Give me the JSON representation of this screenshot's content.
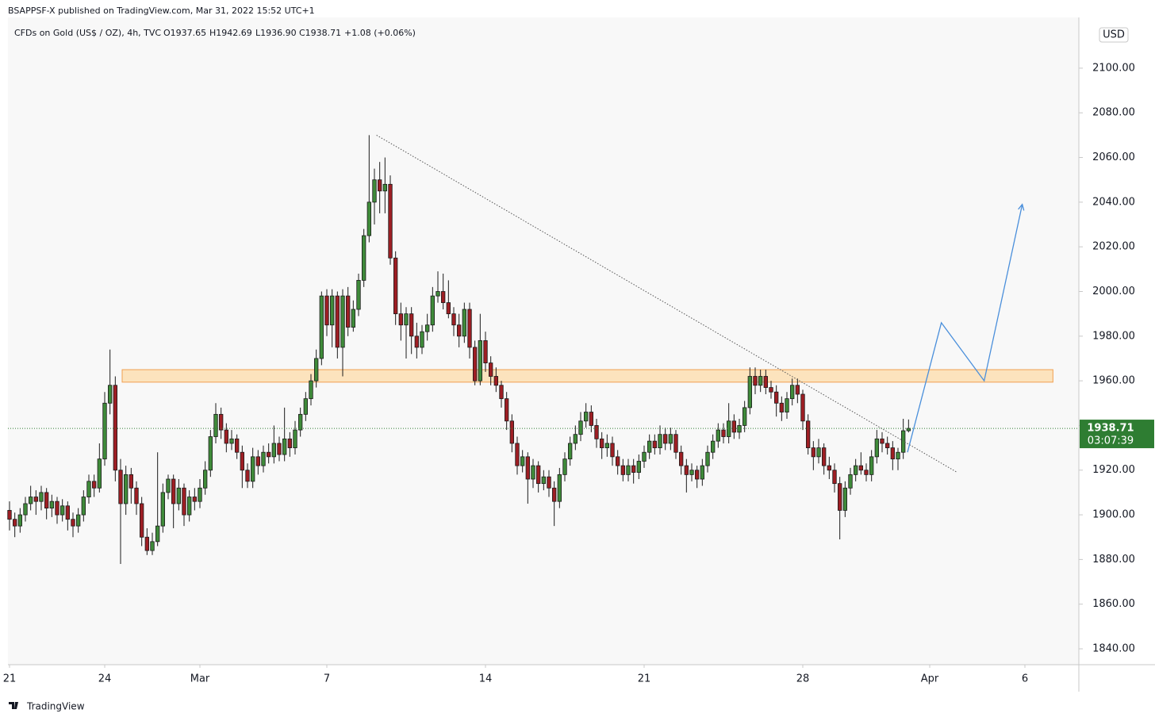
{
  "header": {
    "publisher": "BSAPPSF-X published on TradingView.com, Mar 31, 2022 15:52 UTC+1"
  },
  "footer": {
    "brand": "TradingView"
  },
  "chart_data": {
    "type": "candlestick",
    "symbol": "CFDs on Gold (US$ / OZ), 4h, TVC",
    "legend": {
      "open": "O1937.65",
      "high": "H1942.69",
      "low": "L1936.90",
      "close": "C1938.71",
      "change": "+1.08 (+0.06%)"
    },
    "currency": "USD",
    "last_price": 1938.71,
    "countdown": "03:07:39",
    "up_color": "#3f8b3a",
    "down_color": "#9e1e24",
    "last_price_color": "#2e7d32",
    "xlim": [
      -0.3,
      202.2
    ],
    "xticks": [
      {
        "value": 0,
        "label": "21"
      },
      {
        "value": 18,
        "label": "24"
      },
      {
        "value": 36,
        "label": "Mar"
      },
      {
        "value": 60,
        "label": "7"
      },
      {
        "value": 90,
        "label": "14"
      },
      {
        "value": 120,
        "label": "21"
      },
      {
        "value": 150,
        "label": "28"
      },
      {
        "value": 174,
        "label": "Apr"
      },
      {
        "value": 192,
        "label": "6"
      }
    ],
    "ylim": [
      1832.9,
      2122.7
    ],
    "yticks": [
      {
        "value": 1840,
        "label": "1840.00"
      },
      {
        "value": 1860,
        "label": "1860.00"
      },
      {
        "value": 1880,
        "label": "1880.00"
      },
      {
        "value": 1900,
        "label": "1900.00"
      },
      {
        "value": 1920,
        "label": "1920.00"
      },
      {
        "value": 1940,
        "label": "1940.00"
      },
      {
        "value": 1960,
        "label": "1960.00"
      },
      {
        "value": 1980,
        "label": "1980.00"
      },
      {
        "value": 2000,
        "label": "2000.00"
      },
      {
        "value": 2020,
        "label": "2020.00"
      },
      {
        "value": 2040,
        "label": "2040.00"
      },
      {
        "value": 2060,
        "label": "2060.00"
      },
      {
        "value": 2080,
        "label": "2080.00"
      },
      {
        "value": 2100,
        "label": "2100.00"
      }
    ],
    "drawings": {
      "zone": {
        "x": [
          21.3,
          197.3
        ],
        "y": [
          1959.4,
          1965
        ]
      },
      "trendline": {
        "x": [
          69.4,
          179.2
        ],
        "y": [
          2070,
          1919
        ]
      },
      "projection": {
        "x": [
          169.8,
          176.2,
          184.3,
          191.5
        ],
        "y": [
          1928,
          1986,
          1960,
          2039
        ],
        "color": "#4a8fdb"
      }
    },
    "ohlc": [
      [
        1902,
        1906,
        1893,
        1898
      ],
      [
        1898,
        1901,
        1890,
        1895
      ],
      [
        1895,
        1903,
        1892,
        1900
      ],
      [
        1900,
        1908,
        1897,
        1905
      ],
      [
        1905,
        1913,
        1902,
        1908
      ],
      [
        1908,
        1911,
        1900,
        1906
      ],
      [
        1906,
        1913,
        1902,
        1910
      ],
      [
        1910,
        1912,
        1898,
        1903
      ],
      [
        1903,
        1909,
        1899,
        1906
      ],
      [
        1906,
        1908,
        1896,
        1900
      ],
      [
        1900,
        1907,
        1897,
        1904
      ],
      [
        1904,
        1906,
        1893,
        1898
      ],
      [
        1898,
        1901,
        1890,
        1895
      ],
      [
        1895,
        1903,
        1892,
        1900
      ],
      [
        1900,
        1911,
        1897,
        1908
      ],
      [
        1908,
        1918,
        1905,
        1915
      ],
      [
        1915,
        1918,
        1908,
        1912
      ],
      [
        1912,
        1932,
        1910,
        1925
      ],
      [
        1925,
        1955,
        1922,
        1950
      ],
      [
        1950,
        1974,
        1945,
        1958
      ],
      [
        1958,
        1962,
        1915,
        1920
      ],
      [
        1920,
        1925,
        1878,
        1905
      ],
      [
        1905,
        1922,
        1900,
        1918
      ],
      [
        1918,
        1921,
        1905,
        1912
      ],
      [
        1912,
        1915,
        1900,
        1905
      ],
      [
        1905,
        1908,
        1886,
        1890
      ],
      [
        1890,
        1894,
        1882,
        1884
      ],
      [
        1884,
        1892,
        1882,
        1888
      ],
      [
        1888,
        1928,
        1886,
        1895
      ],
      [
        1895,
        1914,
        1892,
        1910
      ],
      [
        1910,
        1918,
        1907,
        1916
      ],
      [
        1916,
        1918,
        1894,
        1905
      ],
      [
        1905,
        1916,
        1902,
        1912
      ],
      [
        1912,
        1914,
        1895,
        1900
      ],
      [
        1900,
        1911,
        1897,
        1908
      ],
      [
        1908,
        1912,
        1902,
        1906
      ],
      [
        1906,
        1916,
        1903,
        1912
      ],
      [
        1912,
        1924,
        1909,
        1920
      ],
      [
        1920,
        1938,
        1917,
        1935
      ],
      [
        1935,
        1950,
        1932,
        1945
      ],
      [
        1945,
        1948,
        1934,
        1938
      ],
      [
        1938,
        1941,
        1928,
        1932
      ],
      [
        1932,
        1938,
        1929,
        1934
      ],
      [
        1934,
        1936,
        1925,
        1928
      ],
      [
        1928,
        1931,
        1912,
        1920
      ],
      [
        1920,
        1923,
        1912,
        1915
      ],
      [
        1915,
        1930,
        1912,
        1926
      ],
      [
        1926,
        1929,
        1918,
        1922
      ],
      [
        1922,
        1931,
        1919,
        1928
      ],
      [
        1928,
        1932,
        1923,
        1926
      ],
      [
        1926,
        1940,
        1923,
        1932
      ],
      [
        1932,
        1935,
        1924,
        1927
      ],
      [
        1927,
        1948,
        1924,
        1934
      ],
      [
        1934,
        1937,
        1926,
        1930
      ],
      [
        1930,
        1942,
        1927,
        1938
      ],
      [
        1938,
        1948,
        1935,
        1945
      ],
      [
        1945,
        1955,
        1942,
        1952
      ],
      [
        1952,
        1963,
        1949,
        1960
      ],
      [
        1960,
        1974,
        1957,
        1970
      ],
      [
        1970,
        2000,
        1967,
        1998
      ],
      [
        1998,
        2001,
        1980,
        1985
      ],
      [
        1985,
        2001,
        1975,
        1998
      ],
      [
        1998,
        2000,
        1970,
        1975
      ],
      [
        1975,
        2001,
        1962,
        1998
      ],
      [
        1998,
        2002,
        1980,
        1984
      ],
      [
        1984,
        1996,
        1982,
        1992
      ],
      [
        1992,
        2008,
        1989,
        2005
      ],
      [
        2005,
        2028,
        2002,
        2025
      ],
      [
        2025,
        2070,
        2022,
        2040
      ],
      [
        2040,
        2055,
        2030,
        2050
      ],
      [
        2050,
        2058,
        2035,
        2045
      ],
      [
        2045,
        2060,
        2035,
        2048
      ],
      [
        2048,
        2052,
        2012,
        2015
      ],
      [
        2015,
        2018,
        1985,
        1990
      ],
      [
        1990,
        1995,
        1978,
        1985
      ],
      [
        1985,
        1993,
        1970,
        1990
      ],
      [
        1990,
        1993,
        1972,
        1980
      ],
      [
        1980,
        1986,
        1970,
        1975
      ],
      [
        1975,
        1985,
        1972,
        1982
      ],
      [
        1982,
        1990,
        1978,
        1985
      ],
      [
        1985,
        2002,
        1982,
        1998
      ],
      [
        1998,
        2009,
        1995,
        2000
      ],
      [
        2000,
        2008,
        1992,
        1995
      ],
      [
        1995,
        2005,
        1988,
        1990
      ],
      [
        1990,
        1993,
        1980,
        1985
      ],
      [
        1985,
        1990,
        1975,
        1980
      ],
      [
        1980,
        1995,
        1977,
        1992
      ],
      [
        1992,
        1995,
        1970,
        1975
      ],
      [
        1975,
        1978,
        1958,
        1960
      ],
      [
        1960,
        1990,
        1958,
        1978
      ],
      [
        1978,
        1982,
        1964,
        1968
      ],
      [
        1968,
        1971,
        1958,
        1962
      ],
      [
        1962,
        1966,
        1955,
        1958
      ],
      [
        1958,
        1960,
        1948,
        1952
      ],
      [
        1952,
        1955,
        1938,
        1942
      ],
      [
        1942,
        1945,
        1928,
        1932
      ],
      [
        1932,
        1935,
        1918,
        1922
      ],
      [
        1922,
        1929,
        1919,
        1926
      ],
      [
        1926,
        1928,
        1905,
        1916
      ],
      [
        1916,
        1925,
        1912,
        1922
      ],
      [
        1922,
        1924,
        1910,
        1914
      ],
      [
        1914,
        1920,
        1911,
        1917
      ],
      [
        1917,
        1920,
        1908,
        1912
      ],
      [
        1912,
        1915,
        1895,
        1906
      ],
      [
        1906,
        1921,
        1903,
        1918
      ],
      [
        1918,
        1928,
        1915,
        1925
      ],
      [
        1925,
        1935,
        1922,
        1932
      ],
      [
        1932,
        1940,
        1929,
        1936
      ],
      [
        1936,
        1946,
        1933,
        1942
      ],
      [
        1942,
        1950,
        1939,
        1946
      ],
      [
        1946,
        1949,
        1937,
        1940
      ],
      [
        1940,
        1943,
        1930,
        1934
      ],
      [
        1934,
        1937,
        1925,
        1930
      ],
      [
        1930,
        1936,
        1926,
        1932
      ],
      [
        1932,
        1935,
        1922,
        1926
      ],
      [
        1926,
        1929,
        1918,
        1922
      ],
      [
        1922,
        1925,
        1915,
        1918
      ],
      [
        1918,
        1925,
        1915,
        1922
      ],
      [
        1922,
        1925,
        1914,
        1919
      ],
      [
        1919,
        1927,
        1916,
        1924
      ],
      [
        1924,
        1931,
        1921,
        1928
      ],
      [
        1928,
        1936,
        1925,
        1933
      ],
      [
        1933,
        1936,
        1927,
        1930
      ],
      [
        1930,
        1940,
        1927,
        1936
      ],
      [
        1936,
        1939,
        1929,
        1932
      ],
      [
        1932,
        1939,
        1929,
        1936
      ],
      [
        1936,
        1938,
        1925,
        1928
      ],
      [
        1928,
        1931,
        1918,
        1922
      ],
      [
        1922,
        1925,
        1910,
        1918
      ],
      [
        1918,
        1923,
        1915,
        1920
      ],
      [
        1920,
        1922,
        1912,
        1916
      ],
      [
        1916,
        1925,
        1913,
        1922
      ],
      [
        1922,
        1931,
        1919,
        1928
      ],
      [
        1928,
        1936,
        1925,
        1933
      ],
      [
        1933,
        1941,
        1930,
        1938
      ],
      [
        1938,
        1941,
        1932,
        1935
      ],
      [
        1935,
        1950,
        1932,
        1942
      ],
      [
        1942,
        1945,
        1934,
        1937
      ],
      [
        1937,
        1943,
        1934,
        1940
      ],
      [
        1940,
        1951,
        1937,
        1948
      ],
      [
        1948,
        1966,
        1945,
        1962
      ],
      [
        1962,
        1966,
        1954,
        1958
      ],
      [
        1958,
        1965,
        1955,
        1962
      ],
      [
        1962,
        1965,
        1954,
        1957
      ],
      [
        1957,
        1960,
        1952,
        1955
      ],
      [
        1955,
        1958,
        1944,
        1950
      ],
      [
        1950,
        1953,
        1942,
        1946
      ],
      [
        1946,
        1955,
        1943,
        1952
      ],
      [
        1952,
        1961,
        1949,
        1958
      ],
      [
        1958,
        1961,
        1950,
        1954
      ],
      [
        1954,
        1956,
        1938,
        1942
      ],
      [
        1942,
        1945,
        1927,
        1930
      ],
      [
        1930,
        1933,
        1920,
        1926
      ],
      [
        1926,
        1934,
        1923,
        1930
      ],
      [
        1930,
        1932,
        1918,
        1922
      ],
      [
        1922,
        1926,
        1916,
        1920
      ],
      [
        1920,
        1923,
        1910,
        1914
      ],
      [
        1914,
        1917,
        1889,
        1902
      ],
      [
        1902,
        1915,
        1899,
        1912
      ],
      [
        1912,
        1921,
        1909,
        1918
      ],
      [
        1918,
        1925,
        1915,
        1922
      ],
      [
        1922,
        1928,
        1918,
        1920
      ],
      [
        1920,
        1923,
        1915,
        1918
      ],
      [
        1918,
        1929,
        1915,
        1926
      ],
      [
        1926,
        1938,
        1923,
        1934
      ],
      [
        1934,
        1937,
        1928,
        1932
      ],
      [
        1932,
        1935,
        1927,
        1930
      ],
      [
        1930,
        1933,
        1920,
        1925
      ],
      [
        1925,
        1930,
        1920,
        1928
      ],
      [
        1928,
        1943,
        1925,
        1937.65
      ],
      [
        1937.65,
        1942.69,
        1936.9,
        1938.71
      ]
    ]
  }
}
